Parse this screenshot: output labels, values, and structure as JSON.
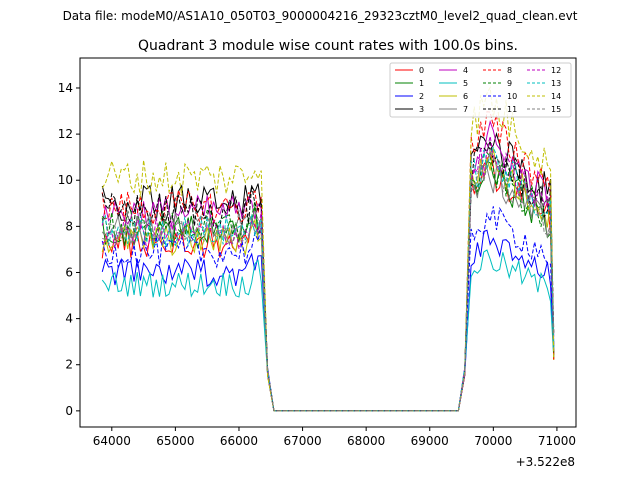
{
  "header": {
    "data_file": "Data file: modeM0/AS1A10_050T03_9000004216_29323cztM0_level2_quad_clean.evt"
  },
  "chart_data": {
    "type": "line",
    "title": "Quadrant 3 module wise count rates with 100.0s bins.",
    "xlabel": "",
    "ylabel": "",
    "offset_label": "+3.522e8",
    "xlim": [
      63500,
      71300
    ],
    "ylim": [
      -0.7,
      15.3
    ],
    "x_ticks": [
      64000,
      65000,
      66000,
      67000,
      68000,
      69000,
      70000,
      71000
    ],
    "x_tick_labels": [
      "64000",
      "65000",
      "66000",
      "67000",
      "68000",
      "69000",
      "70000",
      "71000"
    ],
    "y_ticks": [
      0,
      2,
      4,
      6,
      8,
      10,
      12,
      14
    ],
    "y_tick_labels": [
      "0",
      "2",
      "4",
      "6",
      "8",
      "10",
      "12",
      "14"
    ],
    "grid": false,
    "legend_position": "top-right",
    "x": {
      "segment_1": "63850 to 66350 step 50 (levels), then 66450: 1.5, 66550: 0",
      "zero_range": [
        66550,
        69450
      ],
      "segment_2": "69450: 0, 69550: 1.5, then 69650 to 70950 step 50 (levels)"
    },
    "series": [
      {
        "name": "0",
        "color": "#ff0000",
        "dash": false,
        "level1": 7.3,
        "level2": 10.5
      },
      {
        "name": "1",
        "color": "#008000",
        "dash": false,
        "level1": 7.8,
        "level2": 10.3
      },
      {
        "name": "2",
        "color": "#0000ff",
        "dash": false,
        "level1": 6.0,
        "level2": 7.3
      },
      {
        "name": "3",
        "color": "#000000",
        "dash": false,
        "level1": 9.0,
        "level2": 11.8
      },
      {
        "name": "4",
        "color": "#bf00bf",
        "dash": false,
        "level1": 8.6,
        "level2": 11.6
      },
      {
        "name": "5",
        "color": "#00bfbf",
        "dash": false,
        "level1": 5.5,
        "level2": 6.6
      },
      {
        "name": "6",
        "color": "#bfbf00",
        "dash": false,
        "level1": 7.4,
        "level2": 10.8
      },
      {
        "name": "7",
        "color": "#808080",
        "dash": false,
        "level1": 7.9,
        "level2": 10.2
      },
      {
        "name": "8",
        "color": "#ff0000",
        "dash": true,
        "level1": 8.8,
        "level2": 12.3
      },
      {
        "name": "9",
        "color": "#008000",
        "dash": true,
        "level1": 8.0,
        "level2": 10.5
      },
      {
        "name": "10",
        "color": "#0000ff",
        "dash": true,
        "level1": 6.9,
        "level2": 8.4
      },
      {
        "name": "11",
        "color": "#000000",
        "dash": true,
        "level1": 8.7,
        "level2": 11.2
      },
      {
        "name": "12",
        "color": "#bf00bf",
        "dash": true,
        "level1": 7.7,
        "level2": 11.0
      },
      {
        "name": "13",
        "color": "#00bfbf",
        "dash": true,
        "level1": 7.8,
        "level2": 10.9
      },
      {
        "name": "14",
        "color": "#bfbf00",
        "dash": true,
        "level1": 10.1,
        "level2": 13.4
      },
      {
        "name": "15",
        "color": "#808080",
        "dash": true,
        "level1": 8.0,
        "level2": 10.4
      }
    ]
  }
}
